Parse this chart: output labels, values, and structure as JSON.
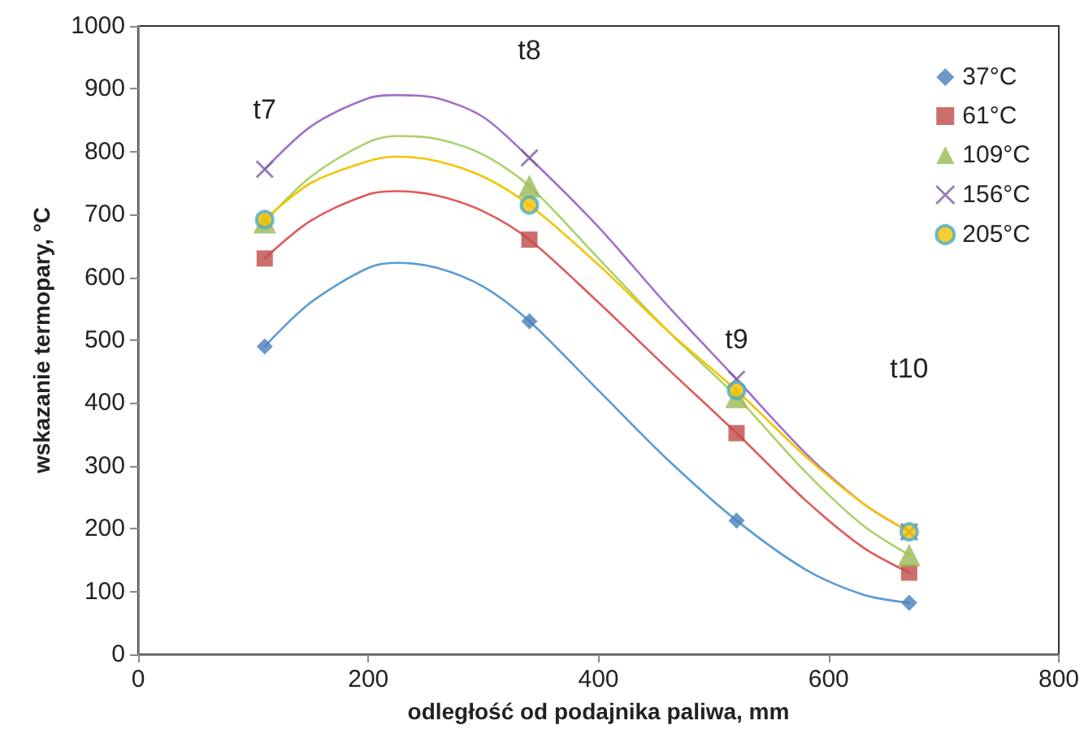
{
  "chart_data": {
    "type": "scatter",
    "xlabel": "odległość od podajnika paliwa, mm",
    "ylabel": "wskazanie termopary, °C",
    "xlim": [
      0,
      800
    ],
    "xticks": [
      0,
      200,
      400,
      600,
      800
    ],
    "ylim": [
      0,
      1000
    ],
    "yticks": [
      0,
      100,
      200,
      300,
      400,
      500,
      600,
      700,
      800,
      900,
      1000
    ],
    "grid": false,
    "legend": "top right",
    "x": [
      110,
      340,
      520,
      670
    ],
    "series": [
      {
        "name": "37°C",
        "color": "#4a7ebb",
        "marker": "diamond",
        "values": [
          490,
          530,
          213,
          82
        ]
      },
      {
        "name": "61°C",
        "color": "#be4b48",
        "marker": "square",
        "values": [
          630,
          660,
          352,
          130
        ]
      },
      {
        "name": "109°C",
        "color": "#98b954",
        "marker": "triangle",
        "values": [
          688,
          745,
          410,
          158
        ]
      },
      {
        "name": "156°C",
        "color": "#7d60a0",
        "marker": "cross",
        "values": [
          772,
          790,
          438,
          195
        ]
      },
      {
        "name": "205°C",
        "color": "#f6c000",
        "marker": "circle",
        "values": [
          692,
          715,
          420,
          195
        ]
      },
      {
        "type": "line",
        "color": "#5b9bd5",
        "marker": "none",
        "x": [
          110,
          150,
          200,
          225,
          260,
          300,
          340,
          400,
          460,
          520,
          580,
          630,
          670
        ],
        "values": [
          490,
          560,
          615,
          623,
          615,
          585,
          530,
          420,
          310,
          213,
          135,
          95,
          82
        ]
      },
      {
        "type": "line",
        "color": "#e05a5a",
        "marker": "none",
        "x": [
          110,
          150,
          200,
          225,
          260,
          300,
          340,
          400,
          460,
          520,
          580,
          630,
          670
        ],
        "values": [
          630,
          690,
          732,
          737,
          730,
          705,
          660,
          560,
          455,
          352,
          245,
          170,
          130
        ]
      },
      {
        "type": "line",
        "color": "#a8d36a",
        "marker": "none",
        "x": [
          110,
          150,
          200,
          225,
          260,
          300,
          340,
          400,
          460,
          520,
          580,
          630,
          670
        ],
        "values": [
          688,
          760,
          815,
          825,
          820,
          795,
          745,
          630,
          515,
          410,
          290,
          205,
          158
        ]
      },
      {
        "type": "line",
        "color": "#a070c8",
        "marker": "none",
        "x": [
          110,
          150,
          200,
          225,
          260,
          300,
          340,
          400,
          460,
          520,
          580,
          630,
          670
        ],
        "values": [
          772,
          840,
          885,
          890,
          885,
          855,
          790,
          680,
          555,
          438,
          320,
          240,
          195
        ]
      },
      {
        "type": "line",
        "color": "#f5c400",
        "marker": "none",
        "x": [
          110,
          150,
          200,
          225,
          260,
          300,
          340,
          400,
          460,
          520,
          580,
          630,
          670
        ],
        "values": [
          692,
          750,
          785,
          792,
          785,
          760,
          715,
          620,
          515,
          420,
          315,
          240,
          195
        ]
      }
    ],
    "annotations": [
      "t7",
      "t8",
      "t9",
      "t10"
    ]
  }
}
